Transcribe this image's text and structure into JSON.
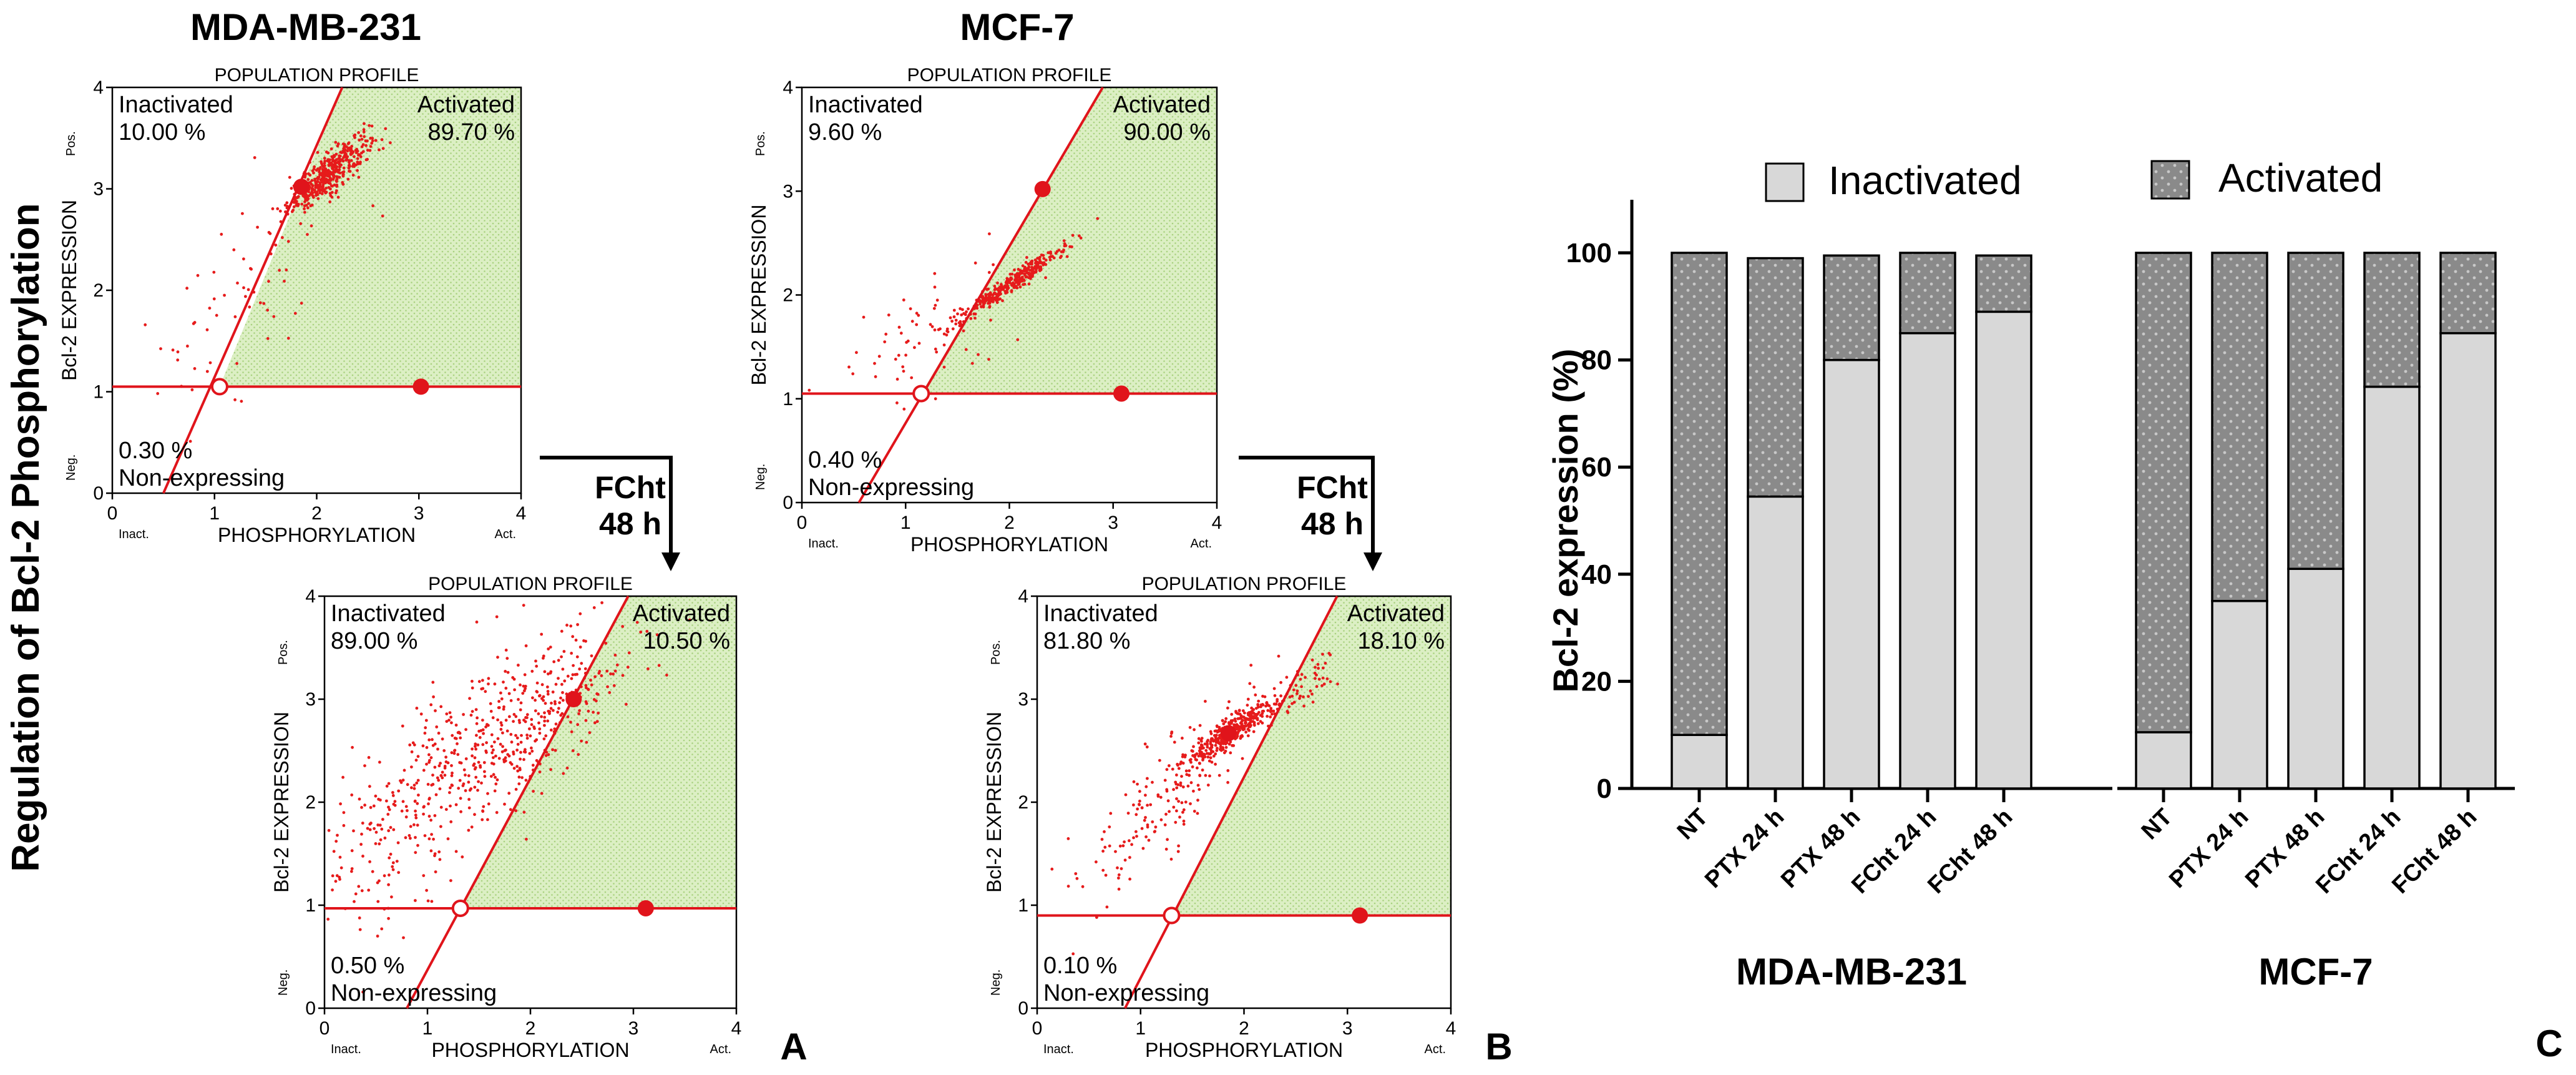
{
  "figure": {
    "side_title": "Regulation of Bcl-2 Phosphorylation",
    "arrow_label_1": "FCht",
    "arrow_label_2": "48 h",
    "panel_letters": [
      "A",
      "B",
      "C"
    ]
  },
  "colors": {
    "gate_red": "#e0141b",
    "dot_red": "#e61b1b",
    "activated_fill": "#dcefc4",
    "bar_light": "#d8d8d8",
    "bar_dark": "#8a8a8a",
    "bar_dots": "#c8c8c8"
  },
  "chart_data": [
    {
      "type": "scatter",
      "id": "mda-control",
      "column_title": "MDA-MB-231",
      "title": "POPULATION PROFILE",
      "xlabel": "PHOSPHORYLATION",
      "ylabel": "Bcl-2 EXPRESSION",
      "x_ticks": [
        "0",
        "1",
        "2",
        "3",
        "4"
      ],
      "y_ticks": [
        "0",
        "1",
        "2",
        "3",
        "4"
      ],
      "x_end_labels": [
        "Inact.",
        "Act."
      ],
      "y_end_labels": [
        "Neg.",
        "Pos."
      ],
      "xlim": [
        0,
        4
      ],
      "ylim": [
        0,
        4
      ],
      "inactivated_label": "Inactivated",
      "inactivated_value": "10.00 %",
      "activated_label": "Activated",
      "activated_value": "89.70 %",
      "nonexpressing_value": "0.30 %",
      "nonexpressing_label": "Non-expressing",
      "gate": {
        "horizontal_y": 1.05,
        "line_from": [
          0.5,
          0
        ],
        "line_to": [
          2.25,
          4
        ],
        "vertex": [
          1.05,
          1.05
        ],
        "upper_handle": [
          1.85,
          3.02
        ],
        "right_handle": [
          3.02,
          1.05
        ]
      },
      "clusters": [
        {
          "cx": 2.12,
          "cy": 3.15,
          "sx": 0.2,
          "sy": 0.19,
          "rho": 0.85,
          "n": 420
        },
        {
          "cx": 1.3,
          "cy": 2.0,
          "sx": 0.5,
          "sy": 0.6,
          "rho": 0.5,
          "n": 70
        }
      ]
    },
    {
      "type": "scatter",
      "id": "mcf-control",
      "column_title": "MCF-7",
      "title": "POPULATION PROFILE",
      "xlabel": "PHOSPHORYLATION",
      "ylabel": "Bcl-2 EXPRESSION",
      "x_ticks": [
        "0",
        "1",
        "2",
        "3",
        "4"
      ],
      "y_ticks": [
        "0",
        "1",
        "2",
        "3",
        "4"
      ],
      "x_end_labels": [
        "Inact.",
        "Act."
      ],
      "y_end_labels": [
        "Neg.",
        "Pos."
      ],
      "xlim": [
        0,
        4
      ],
      "ylim": [
        0,
        4
      ],
      "inactivated_label": "Inactivated",
      "inactivated_value": "9.60 %",
      "activated_label": "Activated",
      "activated_value": "90.00 %",
      "nonexpressing_value": "0.40 %",
      "nonexpressing_label": "Non-expressing",
      "gate": {
        "horizontal_y": 1.05,
        "line_from": [
          0.55,
          0
        ],
        "line_to": [
          2.9,
          4
        ],
        "vertex": [
          1.15,
          1.05
        ],
        "upper_handle": [
          2.32,
          3.02
        ],
        "right_handle": [
          3.08,
          1.05
        ]
      },
      "clusters": [
        {
          "cx": 2.0,
          "cy": 2.1,
          "sx": 0.28,
          "sy": 0.19,
          "rho": 0.97,
          "n": 360
        },
        {
          "cx": 1.2,
          "cy": 1.6,
          "sx": 0.45,
          "sy": 0.35,
          "rho": 0.6,
          "n": 60
        }
      ]
    },
    {
      "type": "scatter",
      "id": "mda-fcht",
      "title": "POPULATION PROFILE",
      "xlabel": "PHOSPHORYLATION",
      "ylabel": "Bcl-2 EXPRESSION",
      "x_ticks": [
        "0",
        "1",
        "2",
        "3",
        "4"
      ],
      "y_ticks": [
        "0",
        "1",
        "2",
        "3",
        "4"
      ],
      "x_end_labels": [
        "Inact.",
        "Act."
      ],
      "y_end_labels": [
        "Neg.",
        "Pos."
      ],
      "xlim": [
        0,
        4
      ],
      "ylim": [
        0,
        4
      ],
      "inactivated_label": "Inactivated",
      "inactivated_value": "89.00 %",
      "activated_label": "Activated",
      "activated_value": "10.50 %",
      "nonexpressing_value": "0.50 %",
      "nonexpressing_label": "Non-expressing",
      "gate": {
        "horizontal_y": 0.97,
        "line_from": [
          0.8,
          0
        ],
        "line_to": [
          2.95,
          4
        ],
        "vertex": [
          1.32,
          0.97
        ],
        "upper_handle": [
          2.42,
          3.0
        ],
        "right_handle": [
          3.12,
          0.97
        ]
      },
      "clusters": [
        {
          "cx": 1.8,
          "cy": 2.7,
          "sx": 0.6,
          "sy": 0.5,
          "rho": 0.7,
          "n": 520
        },
        {
          "cx": 0.6,
          "cy": 1.6,
          "sx": 0.35,
          "sy": 0.5,
          "rho": 0.3,
          "n": 130
        }
      ]
    },
    {
      "type": "scatter",
      "id": "mcf-fcht",
      "title": "POPULATION PROFILE",
      "xlabel": "PHOSPHORYLATION",
      "ylabel": "Bcl-2 EXPRESSION",
      "x_ticks": [
        "0",
        "1",
        "2",
        "3",
        "4"
      ],
      "y_ticks": [
        "0",
        "1",
        "2",
        "3",
        "4"
      ],
      "x_end_labels": [
        "Inact.",
        "Act."
      ],
      "y_end_labels": [
        "Neg.",
        "Pos."
      ],
      "xlim": [
        0,
        4
      ],
      "ylim": [
        0,
        4
      ],
      "inactivated_label": "Inactivated",
      "inactivated_value": "81.80 %",
      "activated_label": "Activated",
      "activated_value": "18.10 %",
      "nonexpressing_value": "0.10 %",
      "nonexpressing_label": "Non-expressing",
      "gate": {
        "horizontal_y": 0.9,
        "line_from": [
          0.85,
          0
        ],
        "line_to": [
          2.9,
          4
        ],
        "vertex": [
          1.3,
          0.9
        ],
        "upper_handle": [
          1.85,
          2.67
        ],
        "right_handle": [
          3.12,
          0.9
        ]
      },
      "clusters": [
        {
          "cx": 1.9,
          "cy": 2.7,
          "sx": 0.25,
          "sy": 0.18,
          "rho": 0.9,
          "n": 380
        },
        {
          "cx": 1.2,
          "cy": 2.0,
          "sx": 0.45,
          "sy": 0.5,
          "rho": 0.8,
          "n": 170
        },
        {
          "cx": 2.65,
          "cy": 3.2,
          "sx": 0.15,
          "sy": 0.15,
          "rho": 0.7,
          "n": 40
        }
      ]
    },
    {
      "type": "bar",
      "stacked": true,
      "ylabel": "Bcl-2 expression  (%)",
      "ylim": [
        0,
        100
      ],
      "y_ticks": [
        "0",
        "20",
        "40",
        "60",
        "80",
        "100"
      ],
      "legend": [
        "Inactivated",
        "Activated"
      ],
      "groups": [
        {
          "name": "MDA-MB-231",
          "categories": [
            "NT",
            "PTX 24 h",
            "PTX 48 h",
            "FCht 24 h",
            "FCht 48 h"
          ],
          "inactivated": [
            10,
            54.5,
            80,
            85,
            89
          ],
          "activated": [
            90,
            44.5,
            19.5,
            15,
            10.5
          ]
        },
        {
          "name": "MCF-7",
          "categories": [
            "NT",
            "PTX 24 h",
            "PTX 48 h",
            "FCht 24 h",
            "FCht 48 h"
          ],
          "inactivated": [
            10.5,
            35,
            41,
            75,
            85
          ],
          "activated": [
            89.5,
            65,
            59,
            25,
            15
          ]
        }
      ]
    }
  ]
}
